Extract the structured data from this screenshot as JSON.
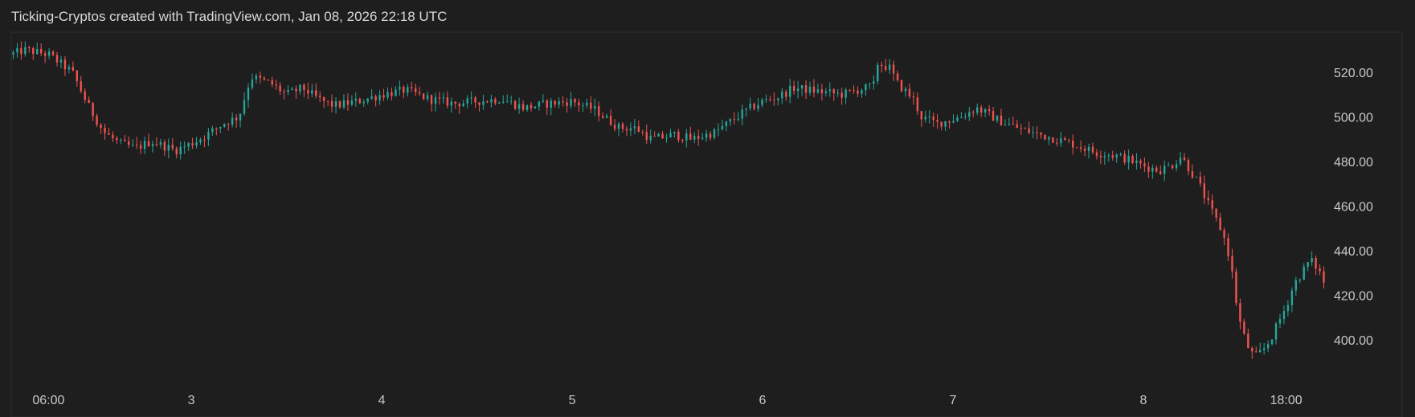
{
  "header": {
    "title": "Ticking-Cryptos created with TradingView.com, Jan 08, 2026 22:18 UTC"
  },
  "colors": {
    "background": "#1e1e1e",
    "up": "#26a69a",
    "down": "#ef5350",
    "text": "#c8c8c8",
    "border": "#2e2e2e"
  },
  "chart_data": {
    "type": "candlestick",
    "title": "",
    "xlabel": "",
    "ylabel": "",
    "grid": false,
    "ylim": [
      383,
      538
    ],
    "y_ticks": [
      "400.00",
      "420.00",
      "440.00",
      "460.00",
      "480.00",
      "500.00",
      "520.00"
    ],
    "y_tick_values": [
      400,
      420,
      440,
      460,
      480,
      500,
      520
    ],
    "x_ticks": [
      "06:00",
      "3",
      "4",
      "5",
      "6",
      "7",
      "8",
      "18:00"
    ],
    "x_tick_hours": [
      6,
      24,
      48,
      72,
      96,
      120,
      144,
      162
    ],
    "x_range_hours": [
      1.3,
      167
    ],
    "price_path_hours": [
      1.3,
      3,
      6,
      9,
      11,
      13,
      15,
      17,
      19,
      22,
      24,
      26,
      28,
      30,
      31,
      31.5,
      34,
      36,
      38,
      40,
      42,
      45,
      48,
      51,
      54,
      57,
      60,
      63,
      66,
      69,
      72,
      75,
      76,
      78,
      80,
      82,
      85,
      87,
      90,
      92,
      94,
      96,
      98,
      100,
      102,
      104,
      106,
      108,
      110,
      110.5,
      112,
      113,
      115,
      116,
      118,
      121,
      123,
      126,
      129,
      131,
      133,
      135,
      138,
      140,
      142,
      144,
      146,
      148,
      148.5,
      149,
      151,
      152,
      153,
      154,
      155,
      155.5,
      156,
      157,
      158,
      159,
      160,
      162,
      163,
      164,
      165,
      166,
      167
    ],
    "price_path_values": [
      528,
      530,
      528,
      520,
      505,
      493,
      488,
      486,
      489,
      485,
      488,
      492,
      497,
      500,
      512,
      518,
      515,
      510,
      513,
      508,
      505,
      507,
      510,
      512,
      508,
      506,
      507,
      508,
      504,
      506,
      507,
      503,
      500,
      495,
      495,
      490,
      492,
      490,
      493,
      498,
      503,
      507,
      509,
      513,
      512,
      511,
      510,
      512,
      514,
      524,
      522,
      515,
      508,
      500,
      497,
      500,
      504,
      498,
      494,
      492,
      490,
      488,
      484,
      483,
      481,
      478,
      476,
      479,
      483,
      481,
      470,
      462,
      455,
      448,
      435,
      422,
      410,
      398,
      392,
      395,
      400,
      415,
      425,
      430,
      436,
      432,
      424
    ]
  }
}
